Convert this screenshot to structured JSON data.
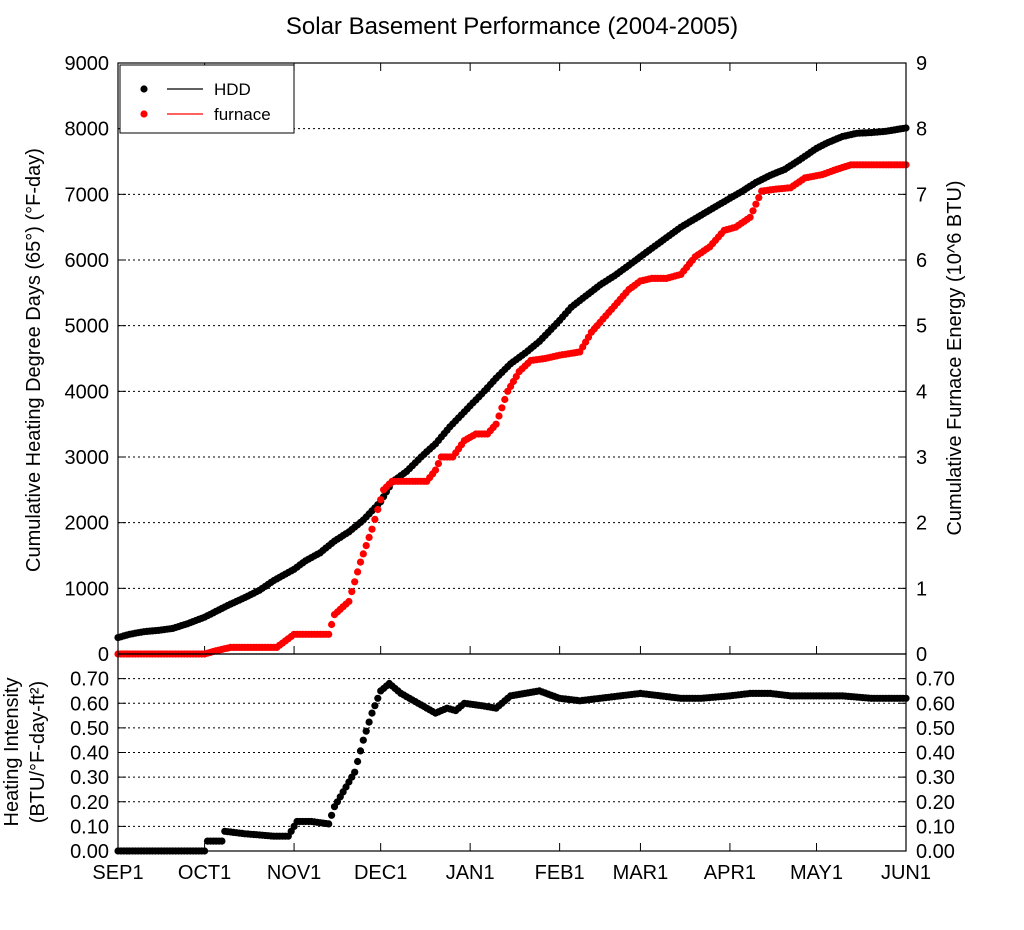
{
  "chart_data": [
    {
      "type": "scatter",
      "title": "Solar Basement Performance (2004-2005)",
      "xlabel": "",
      "xlim": [
        "2004-09-01",
        "2005-06-01"
      ],
      "x_ticks": [
        "SEP1",
        "OCT1",
        "NOV1",
        "DEC1",
        "JAN1",
        "FEB1",
        "MAR1",
        "APR1",
        "MAY1",
        "JUN1"
      ],
      "ylabel_left": "Cumulative Heating Degree Days (65°) (°F-day)",
      "ylim_left": [
        0,
        9000
      ],
      "y_ticks_left": [
        "0",
        "1000",
        "2000",
        "3000",
        "4000",
        "5000",
        "6000",
        "7000",
        "8000",
        "9000"
      ],
      "ylabel_right": "Cumulative Furnace Energy (10^6 BTU)",
      "ylim_right": [
        0,
        9
      ],
      "y_ticks_right": [
        "0",
        "1",
        "2",
        "3",
        "4",
        "5",
        "6",
        "7",
        "8",
        "9"
      ],
      "grid": "horizontal dotted",
      "legend_position": "top-left",
      "legend": [
        {
          "label": "HDD",
          "color": "#000000"
        },
        {
          "label": "furnace",
          "color": "#ff0000"
        }
      ],
      "series": [
        {
          "name": "HDD",
          "axis": "left",
          "color": "#000000",
          "points": [
            [
              "2004-09-01",
              250
            ],
            [
              "2004-09-05",
              300
            ],
            [
              "2004-09-10",
              340
            ],
            [
              "2004-09-15",
              360
            ],
            [
              "2004-09-20",
              390
            ],
            [
              "2004-09-25",
              460
            ],
            [
              "2004-10-01",
              560
            ],
            [
              "2004-10-05",
              650
            ],
            [
              "2004-10-10",
              760
            ],
            [
              "2004-10-15",
              860
            ],
            [
              "2004-10-20",
              970
            ],
            [
              "2004-10-25",
              1120
            ],
            [
              "2004-11-01",
              1290
            ],
            [
              "2004-11-05",
              1420
            ],
            [
              "2004-11-10",
              1540
            ],
            [
              "2004-11-15",
              1720
            ],
            [
              "2004-11-20",
              1860
            ],
            [
              "2004-11-25",
              2040
            ],
            [
              "2004-12-01",
              2320
            ],
            [
              "2004-12-05",
              2620
            ],
            [
              "2004-12-10",
              2780
            ],
            [
              "2004-12-15",
              3000
            ],
            [
              "2004-12-20",
              3200
            ],
            [
              "2004-12-25",
              3460
            ],
            [
              "2005-01-01",
              3780
            ],
            [
              "2005-01-05",
              3960
            ],
            [
              "2005-01-10",
              4200
            ],
            [
              "2005-01-15",
              4420
            ],
            [
              "2005-01-20",
              4580
            ],
            [
              "2005-01-25",
              4760
            ],
            [
              "2005-02-01",
              5080
            ],
            [
              "2005-02-05",
              5280
            ],
            [
              "2005-02-10",
              5450
            ],
            [
              "2005-02-15",
              5620
            ],
            [
              "2005-02-20",
              5760
            ],
            [
              "2005-02-25",
              5920
            ],
            [
              "2005-03-01",
              6050
            ],
            [
              "2005-03-05",
              6180
            ],
            [
              "2005-03-10",
              6340
            ],
            [
              "2005-03-15",
              6500
            ],
            [
              "2005-03-20",
              6630
            ],
            [
              "2005-03-25",
              6760
            ],
            [
              "2005-04-01",
              6940
            ],
            [
              "2005-04-05",
              7040
            ],
            [
              "2005-04-10",
              7180
            ],
            [
              "2005-04-15",
              7290
            ],
            [
              "2005-04-20",
              7380
            ],
            [
              "2005-04-25",
              7520
            ],
            [
              "2005-05-01",
              7700
            ],
            [
              "2005-05-05",
              7790
            ],
            [
              "2005-05-10",
              7880
            ],
            [
              "2005-05-15",
              7930
            ],
            [
              "2005-05-20",
              7940
            ],
            [
              "2005-05-25",
              7960
            ],
            [
              "2005-06-01",
              8010
            ]
          ]
        },
        {
          "name": "furnace",
          "axis": "right",
          "color": "#ff0000",
          "points": [
            [
              "2004-09-01",
              0
            ],
            [
              "2004-10-01",
              0
            ],
            [
              "2004-10-05",
              0.05
            ],
            [
              "2004-10-10",
              0.1
            ],
            [
              "2004-10-15",
              0.1
            ],
            [
              "2004-10-20",
              0.1
            ],
            [
              "2004-10-26",
              0.1
            ],
            [
              "2004-11-01",
              0.3
            ],
            [
              "2004-11-13",
              0.3
            ],
            [
              "2004-11-15",
              0.6
            ],
            [
              "2004-11-20",
              0.8
            ],
            [
              "2004-11-24",
              1.4
            ],
            [
              "2004-11-28",
              1.9
            ],
            [
              "2004-12-02",
              2.5
            ],
            [
              "2004-12-05",
              2.63
            ],
            [
              "2004-12-10",
              2.63
            ],
            [
              "2004-12-17",
              2.63
            ],
            [
              "2004-12-20",
              2.8
            ],
            [
              "2004-12-22",
              3.0
            ],
            [
              "2004-12-26",
              3.0
            ],
            [
              "2004-12-30",
              3.25
            ],
            [
              "2005-01-03",
              3.35
            ],
            [
              "2005-01-07",
              3.35
            ],
            [
              "2005-01-10",
              3.5
            ],
            [
              "2005-01-14",
              4.0
            ],
            [
              "2005-01-18",
              4.3
            ],
            [
              "2005-01-22",
              4.47
            ],
            [
              "2005-01-27",
              4.5
            ],
            [
              "2005-02-01",
              4.55
            ],
            [
              "2005-02-08",
              4.6
            ],
            [
              "2005-02-12",
              4.9
            ],
            [
              "2005-02-15",
              5.05
            ],
            [
              "2005-02-20",
              5.3
            ],
            [
              "2005-02-25",
              5.55
            ],
            [
              "2005-03-01",
              5.68
            ],
            [
              "2005-03-05",
              5.72
            ],
            [
              "2005-03-10",
              5.72
            ],
            [
              "2005-03-15",
              5.78
            ],
            [
              "2005-03-20",
              6.05
            ],
            [
              "2005-03-25",
              6.2
            ],
            [
              "2005-03-30",
              6.45
            ],
            [
              "2005-04-03",
              6.5
            ],
            [
              "2005-04-08",
              6.65
            ],
            [
              "2005-04-12",
              7.05
            ],
            [
              "2005-04-17",
              7.08
            ],
            [
              "2005-04-22",
              7.1
            ],
            [
              "2005-04-27",
              7.25
            ],
            [
              "2005-05-03",
              7.3
            ],
            [
              "2005-05-08",
              7.38
            ],
            [
              "2005-05-13",
              7.45
            ],
            [
              "2005-05-20",
              7.45
            ],
            [
              "2005-06-01",
              7.45
            ]
          ]
        }
      ]
    },
    {
      "type": "scatter",
      "xlabel": "",
      "xlim": [
        "2004-09-01",
        "2005-06-01"
      ],
      "x_ticks": [
        "SEP1",
        "OCT1",
        "NOV1",
        "DEC1",
        "JAN1",
        "FEB1",
        "MAR1",
        "APR1",
        "MAY1",
        "JUN1"
      ],
      "ylabel_line1": "Heating Intensity",
      "ylabel_line2": "(BTU/°F-day-ft²)",
      "ylim": [
        0,
        0.8
      ],
      "y_ticks": [
        "0.00",
        "0.10",
        "0.20",
        "0.30",
        "0.40",
        "0.50",
        "0.60",
        "0.70"
      ],
      "grid": "horizontal dotted",
      "series": [
        {
          "color": "#000000",
          "points": [
            [
              "2004-09-01",
              0
            ],
            [
              "2004-10-01",
              0
            ],
            [
              "2004-10-02",
              0.04
            ],
            [
              "2004-10-07",
              0.04
            ],
            [
              "2004-10-08",
              0.08
            ],
            [
              "2004-10-15",
              0.07
            ],
            [
              "2004-10-25",
              0.06
            ],
            [
              "2004-10-30",
              0.06
            ],
            [
              "2004-11-02",
              0.12
            ],
            [
              "2004-11-07",
              0.12
            ],
            [
              "2004-11-13",
              0.11
            ],
            [
              "2004-11-15",
              0.18
            ],
            [
              "2004-11-18",
              0.24
            ],
            [
              "2004-11-22",
              0.32
            ],
            [
              "2004-11-25",
              0.45
            ],
            [
              "2004-11-28",
              0.56
            ],
            [
              "2004-12-01",
              0.65
            ],
            [
              "2004-12-04",
              0.68
            ],
            [
              "2004-12-08",
              0.64
            ],
            [
              "2004-12-14",
              0.6
            ],
            [
              "2004-12-20",
              0.56
            ],
            [
              "2004-12-24",
              0.58
            ],
            [
              "2004-12-27",
              0.57
            ],
            [
              "2004-12-30",
              0.6
            ],
            [
              "2005-01-05",
              0.59
            ],
            [
              "2005-01-10",
              0.58
            ],
            [
              "2005-01-15",
              0.63
            ],
            [
              "2005-01-20",
              0.64
            ],
            [
              "2005-01-25",
              0.65
            ],
            [
              "2005-02-01",
              0.62
            ],
            [
              "2005-02-08",
              0.61
            ],
            [
              "2005-02-15",
              0.62
            ],
            [
              "2005-02-22",
              0.63
            ],
            [
              "2005-03-01",
              0.64
            ],
            [
              "2005-03-08",
              0.63
            ],
            [
              "2005-03-15",
              0.62
            ],
            [
              "2005-03-22",
              0.62
            ],
            [
              "2005-04-01",
              0.63
            ],
            [
              "2005-04-08",
              0.64
            ],
            [
              "2005-04-15",
              0.64
            ],
            [
              "2005-04-22",
              0.63
            ],
            [
              "2005-05-01",
              0.63
            ],
            [
              "2005-05-10",
              0.63
            ],
            [
              "2005-05-20",
              0.62
            ],
            [
              "2005-06-01",
              0.62
            ]
          ]
        }
      ]
    }
  ]
}
